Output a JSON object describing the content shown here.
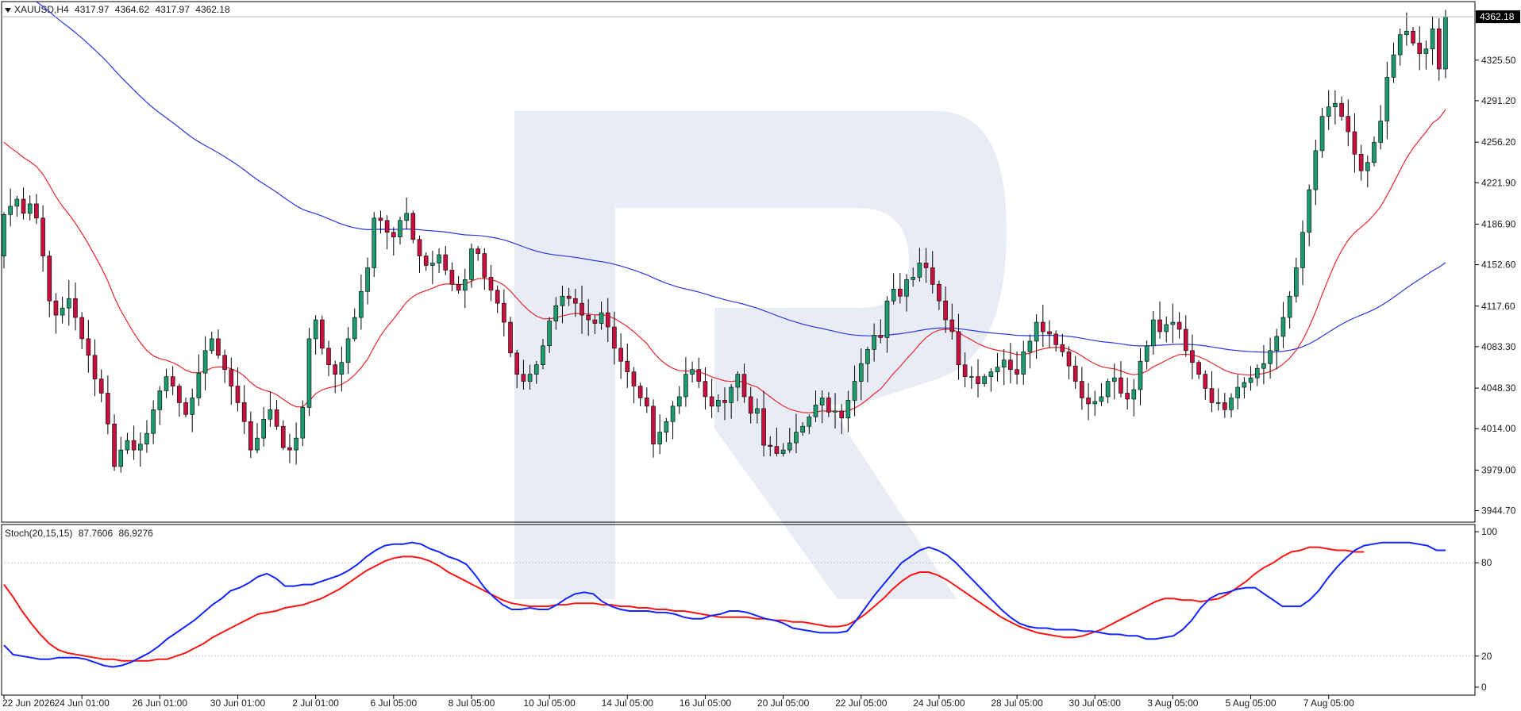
{
  "header": {
    "symbol": "XAUUSD,H4",
    "open": "4317.97",
    "high": "4364.62",
    "low": "4317.97",
    "close": "4362.18"
  },
  "indicator": {
    "label": "Stoch(20,15,15)",
    "main_value": "87.7606",
    "signal_value": "86.9276"
  },
  "colors": {
    "bull": "#1e9b6d",
    "bear": "#c8103f",
    "ma_fast": "#e8262e",
    "ma_slow": "#2a38e0",
    "stoch_main": "#1424ff",
    "stoch_signal": "#ff1414",
    "grid": "#c8c8c8",
    "watermark": "#e8edf5"
  },
  "chart_data": [
    {
      "type": "candlestick",
      "title": "XAUUSD,H4",
      "y_tick_labels": [
        "4325.50",
        "4291.20",
        "4256.20",
        "4221.90",
        "4186.90",
        "4152.60",
        "4117.60",
        "4083.30",
        "4048.30",
        "4014.00",
        "3979.00",
        "3944.70"
      ],
      "ylim": [
        3935,
        4375
      ],
      "last_price": "4362.18",
      "last_price_value": 4362.18,
      "x_tick_labels": [
        "22 Jun 2026",
        "24 Jun 01:00",
        "26 Jun 01:00",
        "30 Jun 01:00",
        "2 Jul 01:00",
        "6 Jul 05:00",
        "8 Jul 05:00",
        "10 Jul 05:00",
        "14 Jul 05:00",
        "16 Jul 05:00",
        "20 Jul 05:00",
        "22 Jul 05:00",
        "24 Jul 05:00",
        "28 Jul 05:00",
        "30 Jul 05:00",
        "3 Aug 05:00",
        "5 Aug 05:00",
        "7 Aug 05:00"
      ],
      "x_tick_index": [
        0,
        12,
        24,
        36,
        48,
        60,
        72,
        84,
        96,
        108,
        120,
        132,
        144,
        156,
        168,
        180,
        192,
        204
      ],
      "closes": [
        4195,
        4202,
        4208,
        4196,
        4204,
        4192,
        4160,
        4122,
        4110,
        4116,
        4124,
        4108,
        4090,
        4076,
        4056,
        4044,
        4018,
        3982,
        3996,
        4004,
        3996,
        4001,
        4010,
        4030,
        4046,
        4058,
        4050,
        4036,
        4026,
        4040,
        4061,
        4080,
        4090,
        4076,
        4064,
        4050,
        4036,
        4020,
        3996,
        4006,
        4022,
        4030,
        4016,
        3998,
        3996,
        4006,
        4032,
        4090,
        4106,
        4082,
        4068,
        4060,
        4070,
        4090,
        4108,
        4130,
        4150,
        4192,
        4190,
        4180,
        4176,
        4190,
        4196,
        4174,
        4160,
        4152,
        4154,
        4161,
        4148,
        4136,
        4131,
        4140,
        4166,
        4162,
        4142,
        4131,
        4120,
        4104,
        4078,
        4060,
        4054,
        4060,
        4068,
        4084,
        4105,
        4118,
        4126,
        4124,
        4120,
        4110,
        4106,
        4103,
        4112,
        4100,
        4082,
        4071,
        4062,
        4050,
        4040,
        4033,
        4001,
        4011,
        4020,
        4033,
        4041,
        4060,
        4064,
        4054,
        4041,
        4033,
        4038,
        4036,
        4049,
        4060,
        4041,
        4027,
        4031,
        4000,
        3999,
        3993,
        3996,
        4002,
        4011,
        4016,
        4024,
        4034,
        4040,
        4028,
        4029,
        4023,
        4038,
        4054,
        4069,
        4081,
        4093,
        4091,
        4122,
        4132,
        4126,
        4140,
        4142,
        4154,
        4150,
        4136,
        4122,
        4106,
        4096,
        4068,
        4058,
        4058,
        4052,
        4058,
        4062,
        4066,
        4072,
        4064,
        4060,
        4079,
        4088,
        4104,
        4096,
        4094,
        4085,
        4079,
        4067,
        4054,
        4040,
        4035,
        4037,
        4041,
        4054,
        4057,
        4044,
        4039,
        4047,
        4071,
        4084,
        4106,
        4096,
        4102,
        4104,
        4098,
        4080,
        4070,
        4060,
        4048,
        4036,
        4036,
        4030,
        4040,
        4049,
        4053,
        4057,
        4065,
        4069,
        4080,
        4092,
        4108,
        4126,
        4150,
        4180,
        4216,
        4249,
        4278,
        4286,
        4289,
        4278,
        4265,
        4246,
        4232,
        4239,
        4256,
        4274,
        4311,
        4330,
        4347,
        4350,
        4340,
        4331,
        4335,
        4352,
        4318,
        4362
      ]
    },
    {
      "type": "line",
      "name": "Stoch(20,15,15)",
      "y_tick_labels": [
        "100",
        "80",
        "20",
        "0"
      ],
      "ylim": [
        0,
        100
      ],
      "levels": [
        80,
        20
      ],
      "series": [
        {
          "name": "87.7606",
          "values": [
            27,
            21,
            20,
            19,
            18,
            18,
            19,
            19,
            19,
            18,
            16,
            14,
            13,
            14,
            16,
            19,
            22,
            26,
            31,
            35,
            39,
            43,
            48,
            53,
            57,
            62,
            64,
            67,
            71,
            73,
            70,
            65,
            65,
            66,
            66,
            68,
            70,
            72,
            75,
            79,
            84,
            88,
            91,
            92,
            92,
            93,
            92,
            89,
            87,
            84,
            82,
            79,
            72,
            64,
            58,
            53,
            50,
            50,
            51,
            50,
            50,
            53,
            57,
            60,
            61,
            60,
            55,
            52,
            50,
            49,
            49,
            49,
            48,
            48,
            47,
            45,
            44,
            44,
            46,
            47,
            49,
            49,
            48,
            46,
            44,
            43,
            41,
            38,
            37,
            36,
            35,
            35,
            35,
            36,
            43,
            51,
            59,
            66,
            73,
            80,
            84,
            88,
            90,
            88,
            85,
            80,
            74,
            68,
            62,
            56,
            50,
            45,
            41,
            39,
            38,
            38,
            37,
            37,
            37,
            36,
            36,
            35,
            34,
            34,
            33,
            33,
            31,
            31,
            32,
            33,
            37,
            43,
            51,
            57,
            60,
            61,
            63,
            64,
            64,
            60,
            56,
            52,
            52,
            52,
            56,
            62,
            70,
            77,
            83,
            88,
            91,
            92,
            93,
            93,
            93,
            93,
            92,
            91,
            88,
            88
          ]
        },
        {
          "name": "86.9276",
          "values": [
            66,
            58,
            49,
            41,
            34,
            28,
            24,
            22,
            21,
            20,
            19,
            18,
            18,
            17,
            17,
            17,
            17,
            18,
            18,
            20,
            22,
            25,
            28,
            32,
            35,
            38,
            41,
            44,
            47,
            48,
            49,
            51,
            52,
            53,
            55,
            57,
            60,
            63,
            67,
            71,
            75,
            78,
            81,
            83,
            84,
            84,
            83,
            81,
            78,
            74,
            71,
            68,
            65,
            62,
            59,
            56,
            54,
            53,
            52,
            52,
            52,
            53,
            53,
            54,
            54,
            54,
            53,
            53,
            52,
            52,
            51,
            51,
            50,
            50,
            49,
            49,
            48,
            47,
            46,
            45,
            45,
            45,
            45,
            44,
            44,
            43,
            43,
            42,
            42,
            41,
            40,
            39,
            39,
            40,
            43,
            47,
            52,
            57,
            63,
            68,
            72,
            74,
            74,
            72,
            69,
            65,
            61,
            57,
            53,
            49,
            45,
            42,
            39,
            37,
            35,
            34,
            33,
            32,
            32,
            33,
            35,
            37,
            40,
            43,
            46,
            49,
            52,
            55,
            57,
            57,
            56,
            56,
            55,
            56,
            57,
            60,
            64,
            68,
            73,
            77,
            80,
            84,
            87,
            88,
            90,
            90,
            89,
            88,
            88,
            87,
            87
          ]
        }
      ]
    }
  ]
}
